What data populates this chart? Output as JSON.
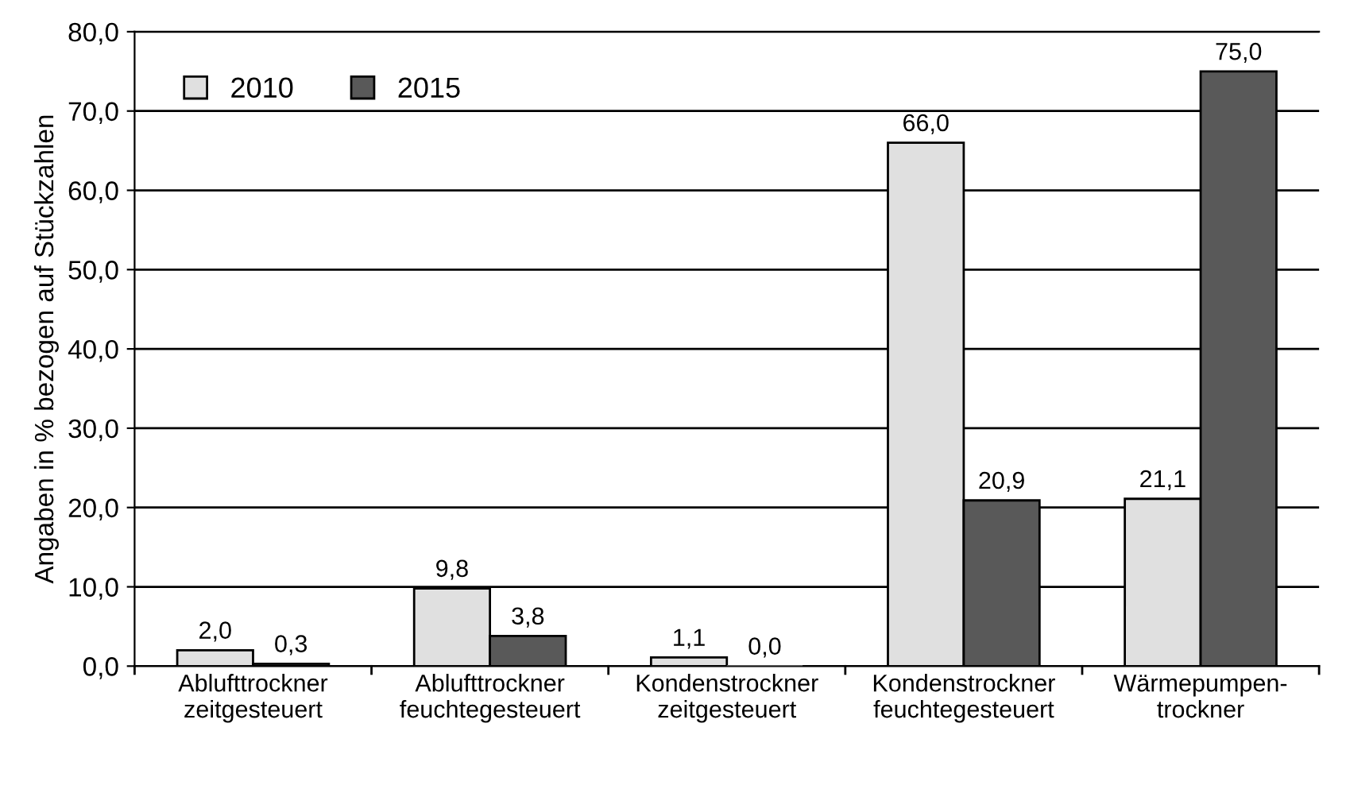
{
  "chart_data": {
    "type": "bar",
    "ylabel": "Angaben in % bezogen auf Stückzahlen",
    "categories": [
      "Ablufttrockner\nzeitgesteuert",
      "Ablufttrockner\nfeuchtegesteuert",
      "Kondenstrockner\nzeitgesteuert",
      "Kondenstrockner\nfeuchtegesteuert",
      "Wärmepumpen-\ntrockner"
    ],
    "series": [
      {
        "name": "2010",
        "color": "#e0e0e0",
        "values": [
          2.0,
          9.8,
          1.1,
          66.0,
          21.1
        ],
        "value_labels": [
          "2,0",
          "9,8",
          "1,1",
          "66,0",
          "21,1"
        ]
      },
      {
        "name": "2015",
        "color": "#595959",
        "values": [
          0.3,
          3.8,
          0.0,
          20.9,
          75.0
        ],
        "value_labels": [
          "0,3",
          "3,8",
          "0,0",
          "20,9",
          "75,0"
        ]
      }
    ],
    "ylim": [
      0,
      80
    ],
    "yticks": [
      {
        "value": 0,
        "label": "0,0"
      },
      {
        "value": 10,
        "label": "10,0"
      },
      {
        "value": 20,
        "label": "20,0"
      },
      {
        "value": 30,
        "label": "30,0"
      },
      {
        "value": 40,
        "label": "40,0"
      },
      {
        "value": 50,
        "label": "50,0"
      },
      {
        "value": 60,
        "label": "60,0"
      },
      {
        "value": 70,
        "label": "70,0"
      },
      {
        "value": 80,
        "label": "80,0"
      }
    ],
    "grid": "y",
    "legend": "top left"
  }
}
